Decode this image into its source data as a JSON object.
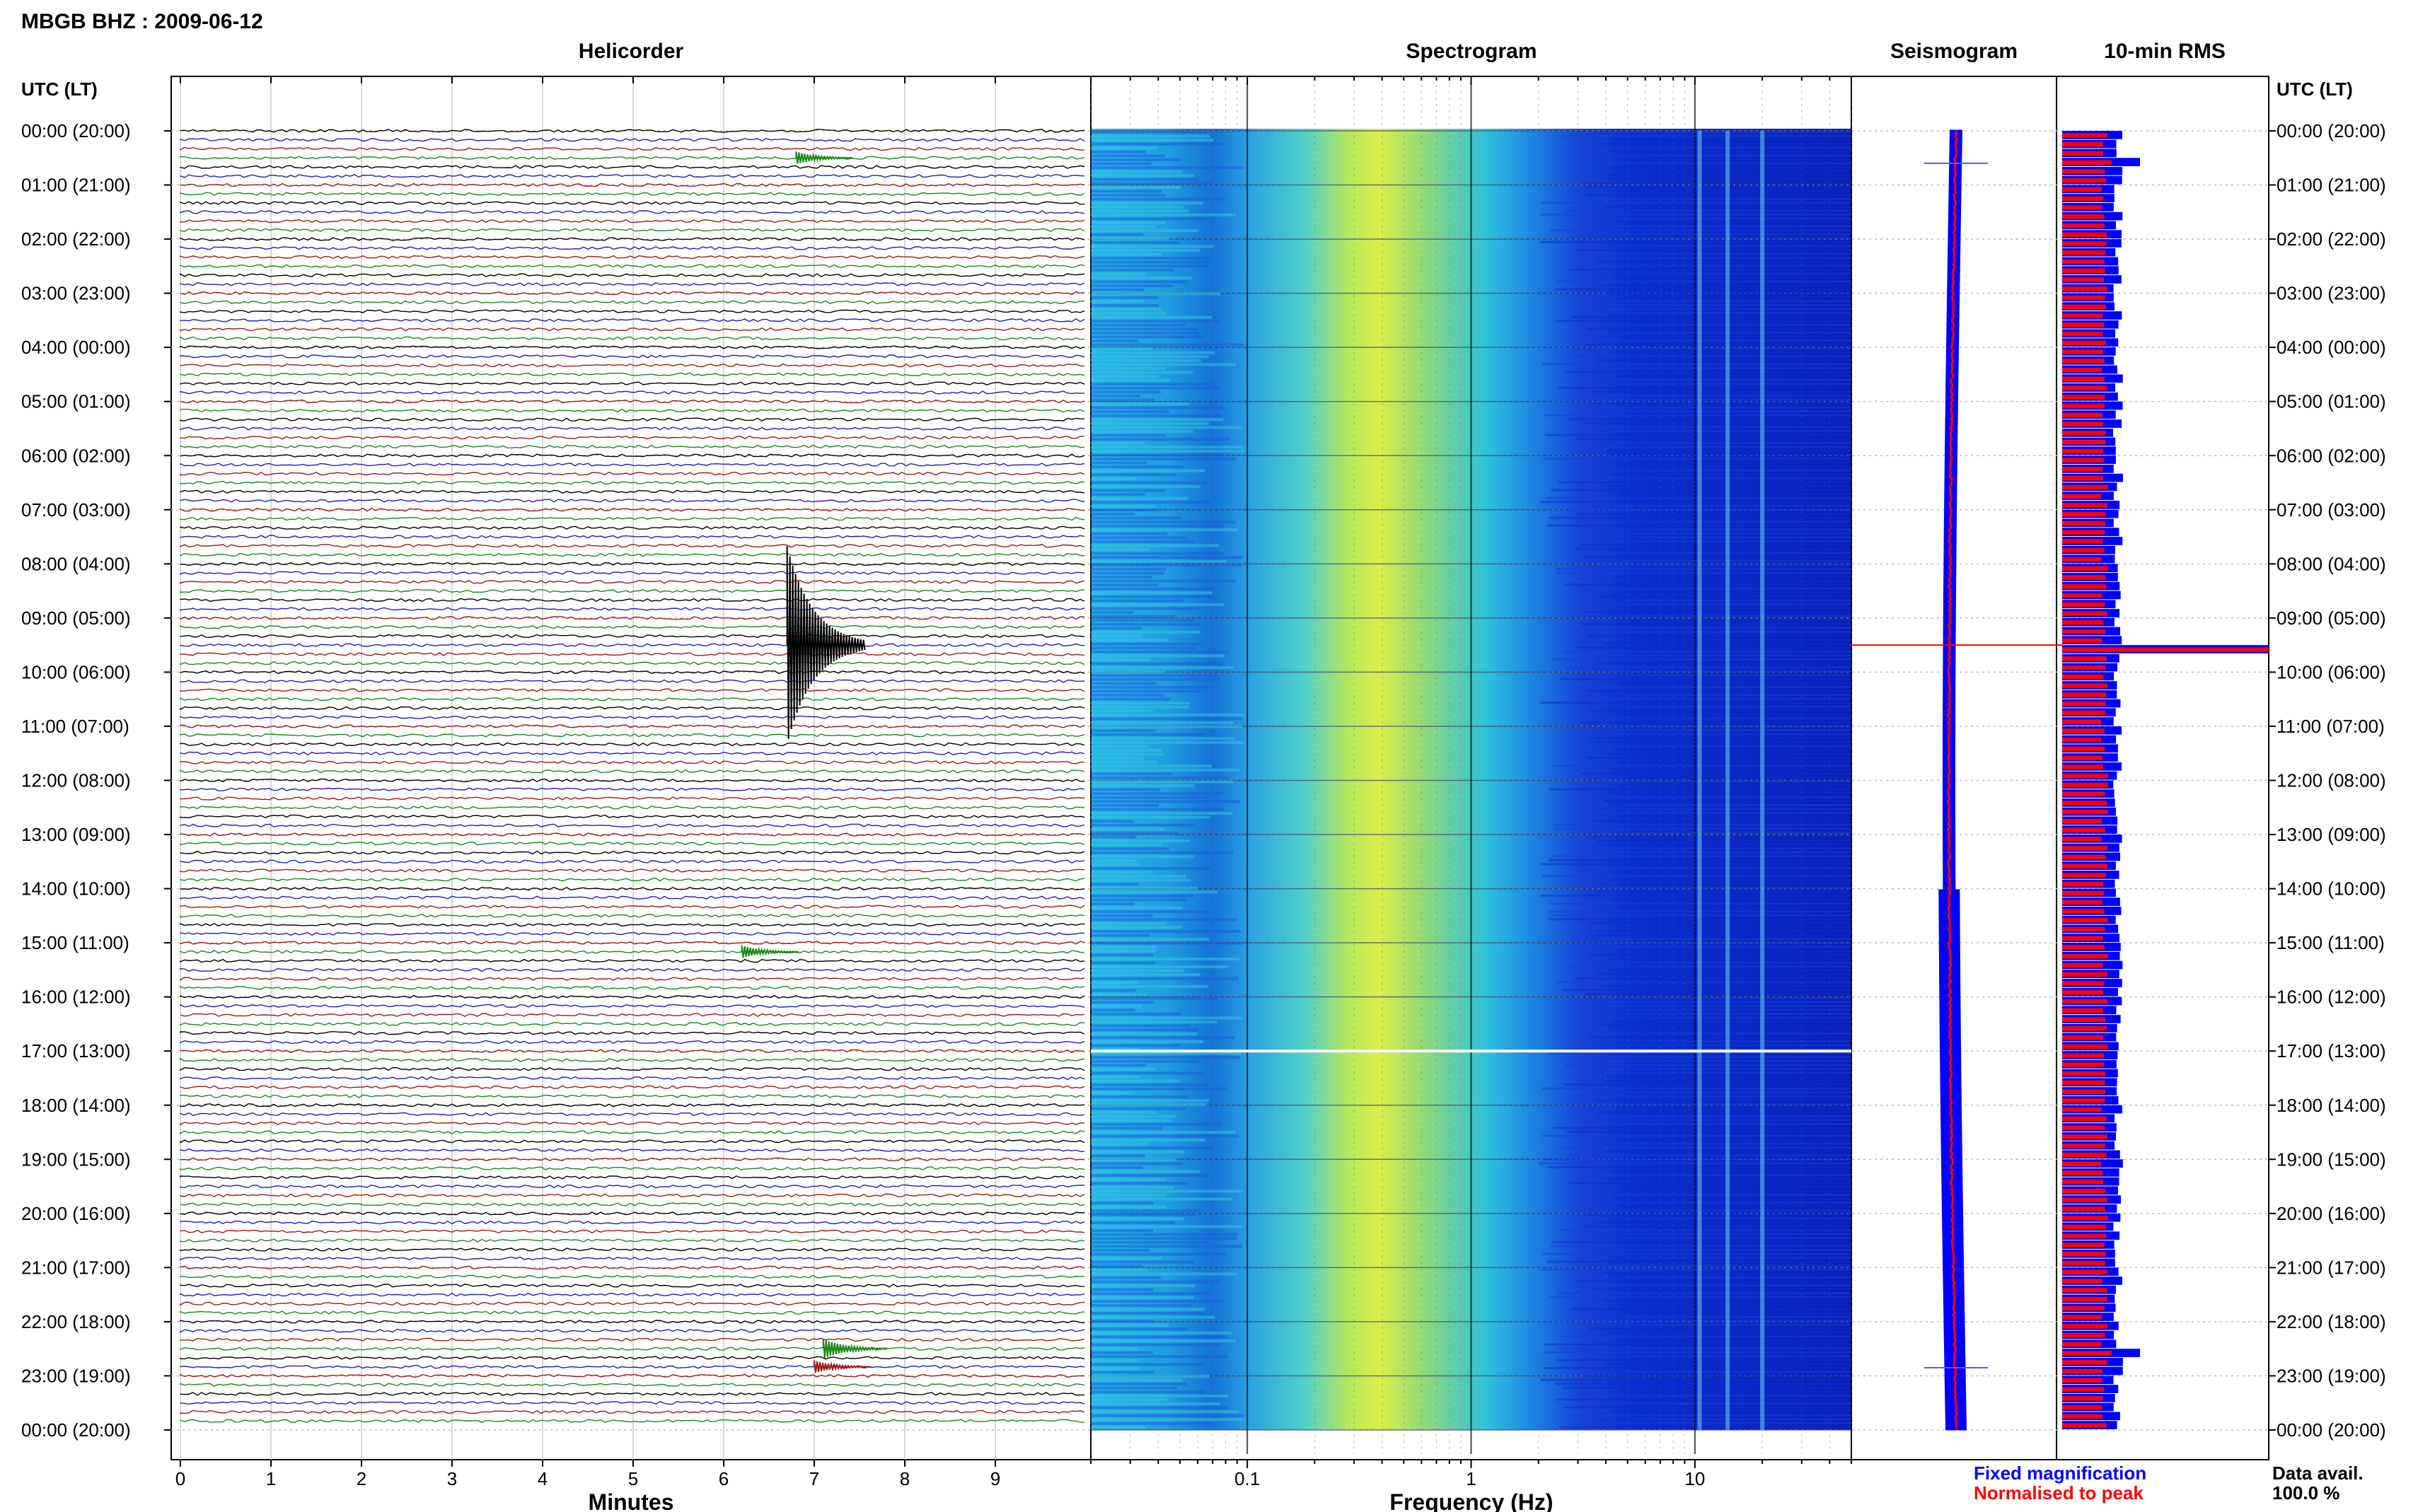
{
  "header": {
    "station_title": "MBGB BHZ : 2009-06-12",
    "utc_label_left": "UTC (LT)",
    "utc_label_right": "UTC (LT)"
  },
  "panels": {
    "helicorder": "Helicorder",
    "spectrogram": "Spectrogram",
    "seismogram": "Seismogram",
    "rms": "10-min RMS"
  },
  "axes": {
    "minutes_label": "Minutes",
    "frequency_label": "Frequency (Hz)"
  },
  "time_labels": [
    "00:00 (20:00)",
    "01:00 (21:00)",
    "02:00 (22:00)",
    "03:00 (23:00)",
    "04:00 (00:00)",
    "05:00 (01:00)",
    "06:00 (02:00)",
    "07:00 (03:00)",
    "08:00 (04:00)",
    "09:00 (05:00)",
    "10:00 (06:00)",
    "11:00 (07:00)",
    "12:00 (08:00)",
    "13:00 (09:00)",
    "14:00 (10:00)",
    "15:00 (11:00)",
    "16:00 (12:00)",
    "17:00 (13:00)",
    "18:00 (14:00)",
    "19:00 (15:00)",
    "20:00 (16:00)",
    "21:00 (17:00)",
    "22:00 (18:00)",
    "23:00 (19:00)",
    "00:00 (20:00)"
  ],
  "legend": {
    "fixed": "Fixed magnification",
    "normalised": "Normalised to peak",
    "fixed_color": "#0000ff",
    "normalised_color": "#ff0000"
  },
  "data_avail": {
    "label": "Data avail.",
    "value": "100.0 %"
  },
  "colors": {
    "black_trace": "#000000",
    "blue_trace": "#1c1cd0",
    "red_trace": "#a01818",
    "green_trace": "#1a8a1a",
    "rms_fixed": "#0000ff",
    "rms_normalised": "#ff0000"
  },
  "chart_data": [
    {
      "type": "line",
      "title": "Helicorder",
      "xlabel": "Minutes",
      "x_ticks": [
        "0",
        "1",
        "2",
        "3",
        "4",
        "5",
        "6",
        "7",
        "8",
        "9"
      ],
      "xlim": [
        0,
        10
      ],
      "ylabel": "UTC (LT)",
      "y_ticks": [
        "00:00 (20:00)",
        "01:00 (21:00)",
        "02:00 (22:00)",
        "03:00 (23:00)",
        "04:00 (00:00)",
        "05:00 (01:00)",
        "06:00 (02:00)",
        "07:00 (03:00)",
        "08:00 (04:00)",
        "09:00 (05:00)",
        "10:00 (06:00)",
        "11:00 (07:00)",
        "12:00 (08:00)",
        "13:00 (09:00)",
        "14:00 (10:00)",
        "15:00 (11:00)",
        "16:00 (12:00)",
        "17:00 (13:00)",
        "18:00 (14:00)",
        "19:00 (15:00)",
        "20:00 (16:00)",
        "21:00 (17:00)",
        "22:00 (18:00)",
        "23:00 (19:00)",
        "00:00 (20:00)"
      ],
      "rows": 144,
      "trace_color_cycle": [
        "black",
        "blue",
        "red",
        "green"
      ],
      "events": [
        {
          "time_utc": "00:30",
          "minute": 6.8,
          "amplitude": "small",
          "color": "green"
        },
        {
          "time_utc": "09:30",
          "minute": 6.7,
          "amplitude": "large",
          "color": "black"
        },
        {
          "time_utc": "15:10",
          "minute": 6.2,
          "amplitude": "small",
          "color": "green"
        },
        {
          "time_utc": "22:30",
          "minute": 7.1,
          "amplitude": "medium",
          "color": "green"
        },
        {
          "time_utc": "22:50",
          "minute": 7.0,
          "amplitude": "small",
          "color": "red"
        }
      ]
    },
    {
      "type": "heatmap",
      "title": "Spectrogram",
      "xlabel": "Frequency (Hz)",
      "x_scale": "log",
      "xlim": [
        0.02,
        50
      ],
      "x_ticks": [
        "0.1",
        "1",
        "10"
      ],
      "ylim_hours_utc": [
        0,
        24
      ],
      "colormap": "jet",
      "energy_peak_hz": 0.45,
      "persistent_lines_hz": [
        10.5,
        14,
        20
      ],
      "data_gap_hour_utc": 17.0
    },
    {
      "type": "line",
      "title": "Seismogram",
      "series": [
        {
          "name": "Fixed magnification",
          "color": "blue"
        },
        {
          "name": "Normalised to peak",
          "color": "red"
        }
      ],
      "spikes_hour_utc": [
        0.6,
        9.5,
        22.85
      ]
    },
    {
      "type": "bar",
      "title": "10-min RMS",
      "orientation": "horizontal",
      "bins": 144,
      "series": [
        {
          "name": "Fixed magnification",
          "color": "blue"
        },
        {
          "name": "Normalised to peak",
          "color": "red"
        }
      ],
      "peaks_hour_utc": [
        0.5,
        9.5,
        22.5
      ]
    }
  ]
}
